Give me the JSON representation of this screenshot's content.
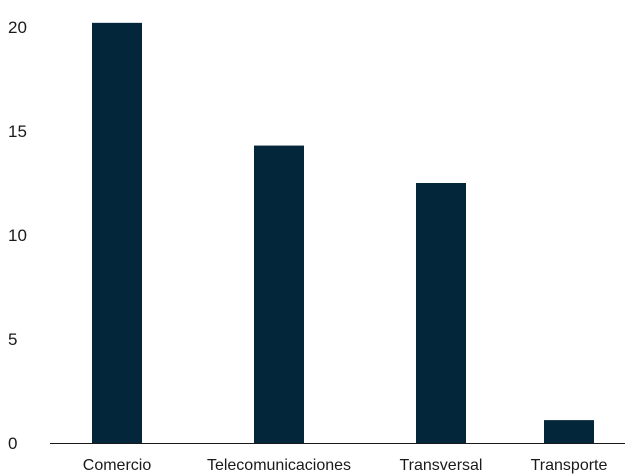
{
  "chart_data": {
    "type": "bar",
    "categories": [
      "Comercio",
      "Telecomunicaciones",
      "Transversal",
      "Transporte"
    ],
    "values": [
      20.2,
      14.3,
      12.5,
      1.1
    ],
    "ylim": [
      0,
      20
    ],
    "yticks": [
      0,
      5,
      10,
      15,
      20
    ],
    "grid": false,
    "bar_color": "#04263a"
  }
}
